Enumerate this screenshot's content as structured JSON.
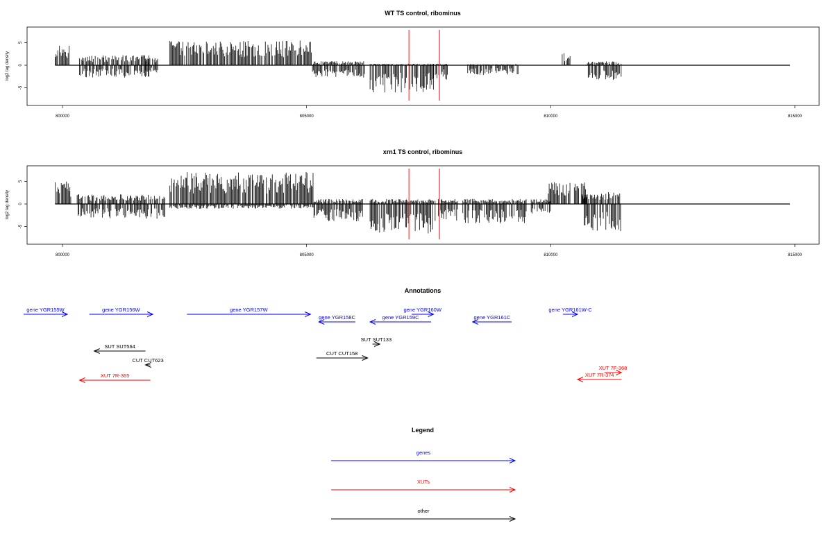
{
  "chart_data": [
    {
      "type": "bar",
      "title": "WT TS control, ribominus",
      "xlabel": "",
      "ylabel": "log2 tag density",
      "xlim": [
        799300,
        815500
      ],
      "ylim": [
        -8,
        8
      ],
      "xticks": [
        800000,
        805000,
        810000,
        815000
      ],
      "xtick_labels": [
        "800000",
        "805000",
        "810000",
        "815000"
      ],
      "yticks": [
        -5,
        0,
        5
      ],
      "ytick_labels": [
        "-5",
        "0",
        "5"
      ],
      "baseline": [
        799850,
        814900
      ],
      "markers": [
        807100,
        807720
      ],
      "marker_color": "#f08080",
      "segments": [
        {
          "start": 799850,
          "end": 800150,
          "pos": 4.5,
          "neg": 0
        },
        {
          "start": 800350,
          "end": 801800,
          "pos": 2.0,
          "neg": -2.5
        },
        {
          "start": 801700,
          "end": 801950,
          "pos": 1.5,
          "neg": -1.5
        },
        {
          "start": 802200,
          "end": 805120,
          "pos": 5.0,
          "neg": 0
        },
        {
          "start": 805120,
          "end": 806200,
          "pos": 0.8,
          "neg": -2.5
        },
        {
          "start": 806300,
          "end": 807600,
          "pos": 0.3,
          "neg": -5.5
        },
        {
          "start": 807600,
          "end": 807900,
          "pos": 0.3,
          "neg": -3.0
        },
        {
          "start": 808300,
          "end": 809400,
          "pos": 0.2,
          "neg": -2.0
        },
        {
          "start": 810200,
          "end": 810400,
          "pos": 2.5,
          "neg": 0
        },
        {
          "start": 810750,
          "end": 811450,
          "pos": 0.8,
          "neg": -3.0
        }
      ]
    },
    {
      "type": "bar",
      "title": "xrn1 TS control, ribominus",
      "xlabel": "",
      "ylabel": "log2 tag density",
      "xlim": [
        799300,
        815500
      ],
      "ylim": [
        -8,
        8
      ],
      "xticks": [
        800000,
        805000,
        810000,
        815000
      ],
      "xtick_labels": [
        "800000",
        "805000",
        "810000",
        "815000"
      ],
      "yticks": [
        -5,
        0,
        5
      ],
      "ytick_labels": [
        "-5",
        "0",
        "5"
      ],
      "baseline": [
        799850,
        814900
      ],
      "markers": [
        807100,
        807720
      ],
      "marker_color": "#f08080",
      "segments": [
        {
          "start": 799850,
          "end": 800200,
          "pos": 4.5,
          "neg": 0
        },
        {
          "start": 800300,
          "end": 802100,
          "pos": 2.0,
          "neg": -3.0
        },
        {
          "start": 802200,
          "end": 805150,
          "pos": 6.5,
          "neg": -1.0
        },
        {
          "start": 805150,
          "end": 806150,
          "pos": 1.0,
          "neg": -3.5
        },
        {
          "start": 806300,
          "end": 807650,
          "pos": 1.0,
          "neg": -6.0
        },
        {
          "start": 807700,
          "end": 808100,
          "pos": 1.0,
          "neg": -3.5
        },
        {
          "start": 808200,
          "end": 809500,
          "pos": 1.0,
          "neg": -4.0
        },
        {
          "start": 809600,
          "end": 810000,
          "pos": 1.0,
          "neg": -2.0
        },
        {
          "start": 809950,
          "end": 810750,
          "pos": 4.5,
          "neg": 0
        },
        {
          "start": 810650,
          "end": 811450,
          "pos": 2.5,
          "neg": -5.5
        }
      ]
    }
  ],
  "annotations": {
    "title": "Annotations",
    "features": [
      {
        "label": "gene YGR155W",
        "class": "gene",
        "start": 799000,
        "end": 800100,
        "strand": "+"
      },
      {
        "label": "gene YGR156W",
        "class": "gene",
        "start": 800550,
        "end": 801850,
        "strand": "+"
      },
      {
        "label": "gene YGR157W",
        "class": "gene",
        "start": 802550,
        "end": 805080,
        "strand": "+"
      },
      {
        "label": "gene YGR158C",
        "class": "gene",
        "start": 805250,
        "end": 806000,
        "strand": "-"
      },
      {
        "label": "gene YGR159C",
        "class": "gene",
        "start": 806300,
        "end": 807550,
        "strand": "-"
      },
      {
        "label": "gene YGR160W",
        "class": "gene",
        "start": 807150,
        "end": 807600,
        "strand": "+"
      },
      {
        "label": "gene YGR161C",
        "class": "gene",
        "start": 808400,
        "end": 809200,
        "strand": "-"
      },
      {
        "label": "gene YGR161W-C",
        "class": "gene",
        "start": 810250,
        "end": 810550,
        "strand": "+"
      },
      {
        "label": "SUT SUT133",
        "class": "other",
        "start": 806350,
        "end": 806500,
        "strand": "+"
      },
      {
        "label": "SUT SUT564",
        "class": "other",
        "start": 800650,
        "end": 801700,
        "strand": "-"
      },
      {
        "label": "CUT CUT158",
        "class": "other",
        "start": 805200,
        "end": 806250,
        "strand": "+"
      },
      {
        "label": "CUT CUT623",
        "class": "other",
        "start": 801700,
        "end": 801800,
        "strand": "-"
      },
      {
        "label": "XUT 7F-368",
        "class": "xut",
        "start": 811100,
        "end": 811450,
        "strand": "+"
      },
      {
        "label": "XUT 7R-374",
        "class": "xut",
        "start": 810550,
        "end": 811450,
        "strand": "-"
      },
      {
        "label": "XUT 7R-365",
        "class": "xut",
        "start": 800350,
        "end": 801800,
        "strand": "-"
      }
    ]
  },
  "legend": {
    "title": "Legend",
    "items": [
      {
        "label": "genes",
        "class": "gene"
      },
      {
        "label": "XUTs",
        "class": "xut"
      },
      {
        "label": "other",
        "class": "other"
      }
    ]
  },
  "colors": {
    "gene": "#0000ff",
    "xut": "#ff0000",
    "other": "#000000",
    "marker": "#f08080"
  }
}
